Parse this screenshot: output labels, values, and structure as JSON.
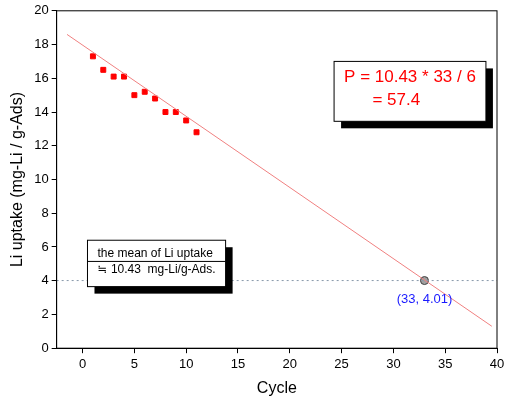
{
  "chart_data": {
    "type": "scatter",
    "x_label": "Cycle",
    "y_label": "Li uptake (mg-Li / g-Ads)",
    "xlim": [
      -2.5,
      40
    ],
    "xticks": [
      0,
      5,
      10,
      15,
      20,
      25,
      30,
      35,
      40
    ],
    "ylim": [
      0,
      20
    ],
    "yticks": [
      0,
      2,
      4,
      6,
      8,
      10,
      12,
      14,
      16,
      18,
      20
    ],
    "grid": false,
    "series": [
      {
        "type": "line",
        "color": "#f08080",
        "line_style": "solid",
        "x": [
          -1.5,
          39.5
        ],
        "values": [
          18.6,
          1.3
        ]
      },
      {
        "type": "line",
        "color": "#8899aa",
        "line_style": "dotted",
        "x": [
          -2.5,
          40
        ],
        "values": [
          4.01,
          4.01
        ]
      },
      {
        "type": "scatter",
        "color": "#ff0000",
        "marker": "square",
        "x": [
          1,
          2,
          3,
          4,
          5,
          6,
          7,
          8,
          9,
          10,
          11
        ],
        "values": [
          17.3,
          16.5,
          16.1,
          16.1,
          15.0,
          15.2,
          14.8,
          14.0,
          14.0,
          13.5,
          12.8
        ]
      },
      {
        "type": "scatter",
        "color": "#a0a0a0",
        "marker": "circle",
        "x": [
          33
        ],
        "values": [
          4.01
        ],
        "value_labels": [
          "(33, 4.01)"
        ]
      }
    ],
    "annotations": [
      {
        "text": [
          "P = 10.43 * 33 / 6",
          "      = 57.4"
        ],
        "color": "#ff0000"
      },
      {
        "text": [
          "the mean of Li uptake",
          "≒ 10.43  mg-Li/g-Ads."
        ],
        "color": "#000000"
      }
    ]
  }
}
